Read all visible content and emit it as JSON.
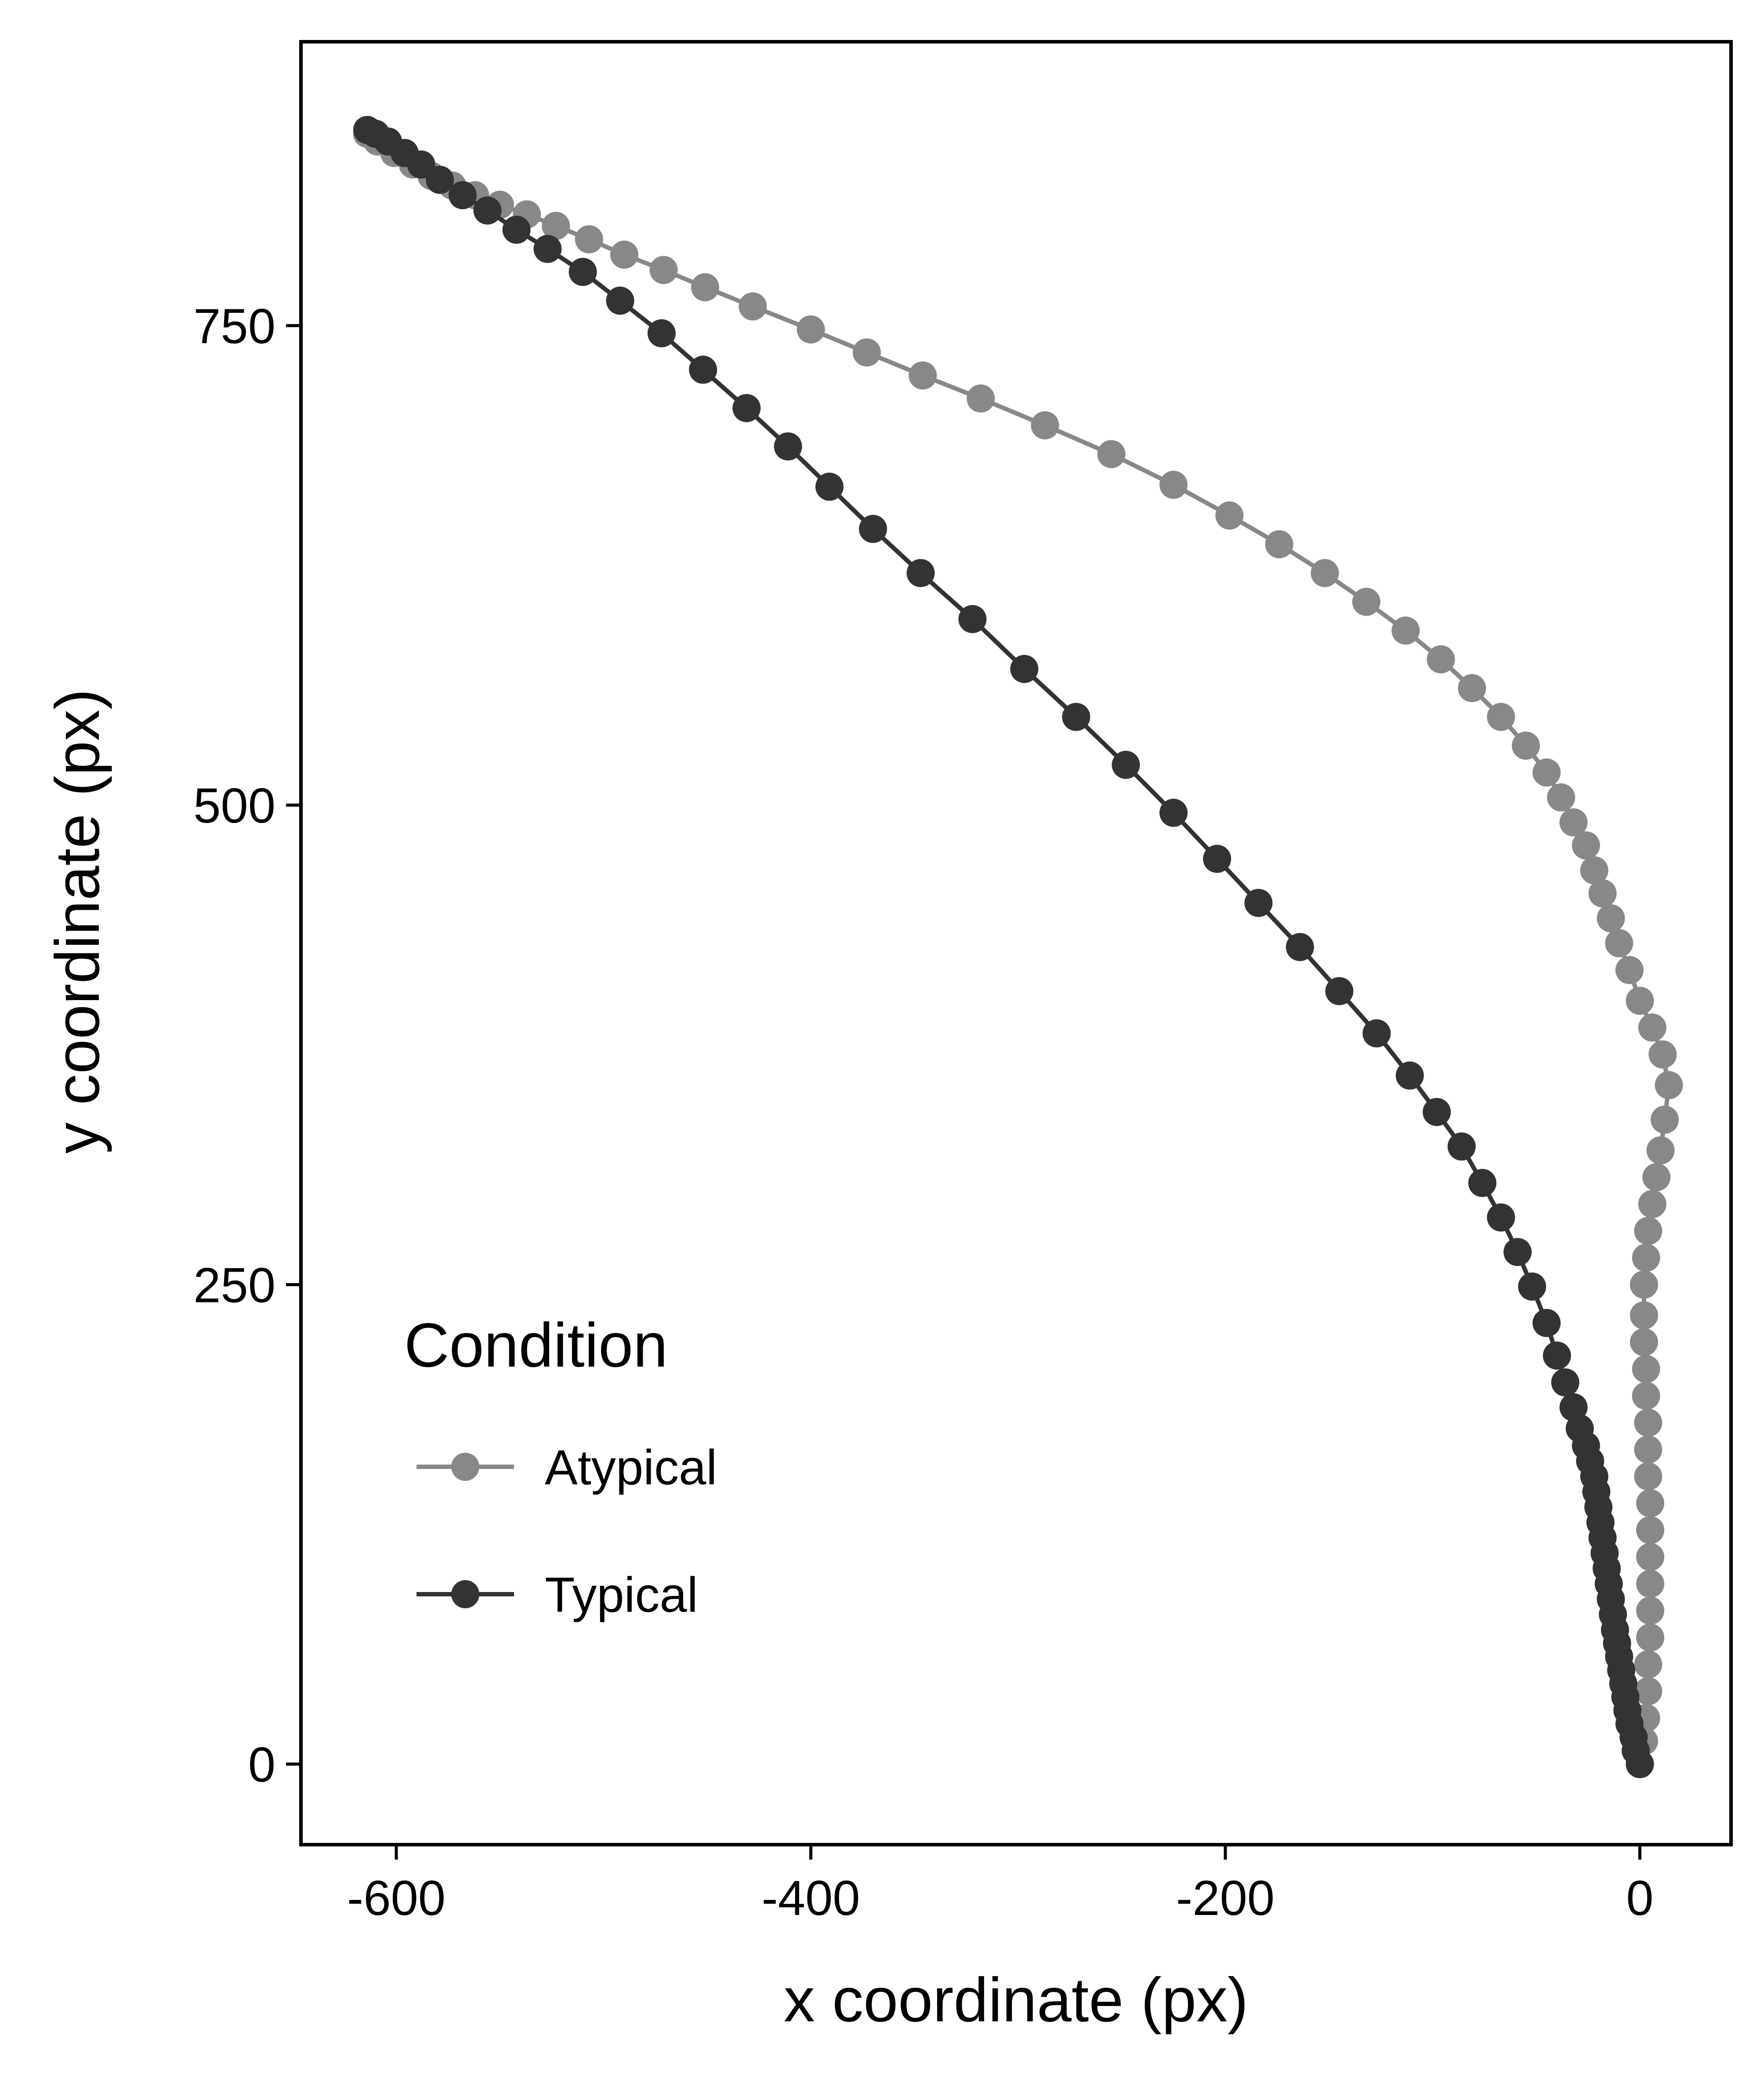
{
  "chart_data": {
    "type": "line",
    "title": "",
    "xlabel": "x coordinate (px)",
    "ylabel": "y coordinate (px)",
    "xlim": [
      -646,
      44
    ],
    "ylim": [
      -42,
      898
    ],
    "x_ticks": [
      -600,
      -400,
      -200,
      0
    ],
    "x_tick_labels": [
      "-600",
      "-400",
      "-200",
      "0"
    ],
    "y_ticks": [
      0,
      250,
      500,
      750
    ],
    "y_tick_labels": [
      "0",
      "250",
      "500",
      "750"
    ],
    "grid": false,
    "legend": {
      "title": "Condition",
      "position": "bottom-left-inside",
      "entries": [
        "Atypical",
        "Typical"
      ]
    },
    "series": [
      {
        "name": "Atypical",
        "color": "#888888",
        "points": [
          [
            0,
            0
          ],
          [
            2,
            12
          ],
          [
            3,
            24
          ],
          [
            4,
            38
          ],
          [
            4,
            52
          ],
          [
            5,
            66
          ],
          [
            5,
            80
          ],
          [
            5,
            94
          ],
          [
            5,
            108
          ],
          [
            5,
            122
          ],
          [
            5,
            136
          ],
          [
            4,
            150
          ],
          [
            4,
            164
          ],
          [
            4,
            178
          ],
          [
            3,
            192
          ],
          [
            3,
            206
          ],
          [
            2,
            220
          ],
          [
            2,
            234
          ],
          [
            2,
            250
          ],
          [
            3,
            264
          ],
          [
            4,
            278
          ],
          [
            6,
            292
          ],
          [
            8,
            306
          ],
          [
            10,
            320
          ],
          [
            12,
            336
          ],
          [
            14,
            354
          ],
          [
            11,
            370
          ],
          [
            6,
            384
          ],
          [
            0,
            398
          ],
          [
            -5,
            414
          ],
          [
            -10,
            428
          ],
          [
            -14,
            441
          ],
          [
            -18,
            454
          ],
          [
            -22,
            466
          ],
          [
            -26,
            479
          ],
          [
            -32,
            491
          ],
          [
            -38,
            504
          ],
          [
            -45,
            517
          ],
          [
            -55,
            531
          ],
          [
            -67,
            546
          ],
          [
            -81,
            561
          ],
          [
            -96,
            576
          ],
          [
            -113,
            591
          ],
          [
            -132,
            606
          ],
          [
            -152,
            621
          ],
          [
            -174,
            636
          ],
          [
            -198,
            651
          ],
          [
            -225,
            667
          ],
          [
            -255,
            683
          ],
          [
            -287,
            698
          ],
          [
            -318,
            712
          ],
          [
            -346,
            724
          ],
          [
            -373,
            736
          ],
          [
            -400,
            748
          ],
          [
            -428,
            760
          ],
          [
            -451,
            770
          ],
          [
            -471,
            779
          ],
          [
            -490,
            787
          ],
          [
            -507,
            795
          ],
          [
            -523,
            802
          ],
          [
            -537,
            808
          ],
          [
            -550,
            813
          ],
          [
            -562,
            818
          ],
          [
            -573,
            823
          ],
          [
            -583,
            828
          ],
          [
            -592,
            834
          ],
          [
            -601,
            840
          ],
          [
            -609,
            846
          ],
          [
            -614,
            850
          ]
        ]
      },
      {
        "name": "Typical",
        "color": "#333333",
        "points": [
          [
            0,
            0
          ],
          [
            -2,
            7
          ],
          [
            -3,
            14
          ],
          [
            -5,
            21
          ],
          [
            -6,
            28
          ],
          [
            -7,
            35
          ],
          [
            -8,
            42
          ],
          [
            -9,
            49
          ],
          [
            -10,
            56
          ],
          [
            -11,
            63
          ],
          [
            -12,
            70
          ],
          [
            -13,
            78
          ],
          [
            -14,
            86
          ],
          [
            -15,
            94
          ],
          [
            -16,
            102
          ],
          [
            -17,
            110
          ],
          [
            -18,
            118
          ],
          [
            -19,
            126
          ],
          [
            -20,
            134
          ],
          [
            -21,
            142
          ],
          [
            -22,
            150
          ],
          [
            -24,
            158
          ],
          [
            -26,
            166
          ],
          [
            -29,
            175
          ],
          [
            -32,
            186
          ],
          [
            -36,
            199
          ],
          [
            -40,
            213
          ],
          [
            -45,
            230
          ],
          [
            -52,
            249
          ],
          [
            -59,
            267
          ],
          [
            -67,
            285
          ],
          [
            -76,
            303
          ],
          [
            -86,
            322
          ],
          [
            -98,
            340
          ],
          [
            -111,
            359
          ],
          [
            -127,
            381
          ],
          [
            -145,
            403
          ],
          [
            -164,
            426
          ],
          [
            -184,
            449
          ],
          [
            -204,
            472
          ],
          [
            -225,
            496
          ],
          [
            -248,
            521
          ],
          [
            -272,
            546
          ],
          [
            -297,
            571
          ],
          [
            -322,
            597
          ],
          [
            -347,
            621
          ],
          [
            -370,
            644
          ],
          [
            -391,
            666
          ],
          [
            -411,
            687
          ],
          [
            -431,
            707
          ],
          [
            -452,
            727
          ],
          [
            -472,
            746
          ],
          [
            -492,
            763
          ],
          [
            -510,
            778
          ],
          [
            -527,
            790
          ],
          [
            -542,
            800
          ],
          [
            -556,
            810
          ],
          [
            -568,
            818
          ],
          [
            -579,
            826
          ],
          [
            -588,
            834
          ],
          [
            -596,
            840
          ],
          [
            -604,
            846
          ],
          [
            -610,
            850
          ],
          [
            -614,
            852
          ]
        ]
      }
    ]
  }
}
